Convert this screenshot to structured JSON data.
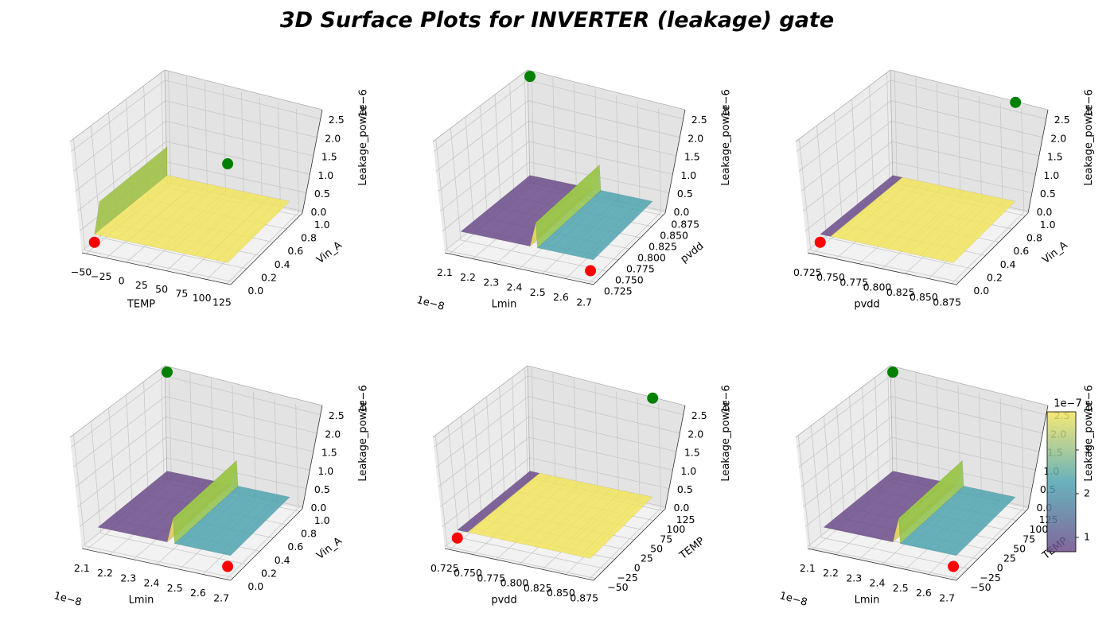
{
  "title": "3D Surface Plots for INVERTER (leakage) gate",
  "colors": {
    "low": "#6b4c8a",
    "mid": "#4fa4b0",
    "high": "#f3e55e",
    "max_marker": "#008000",
    "min_marker": "#ff0000"
  },
  "colorbar": {
    "exponent": "1e−7",
    "ticks": [
      "1",
      "2",
      "3"
    ],
    "colormap": "viridis"
  },
  "chart_data": [
    {
      "type": "surface3d",
      "xlabel": "TEMP",
      "ylabel": "Vin_A",
      "zlabel": "Leakage_power",
      "z_exponent": "1e−6",
      "x_ticks": [
        "−50",
        "−25",
        "0",
        "25",
        "50",
        "75",
        "100",
        "125"
      ],
      "y_ticks": [
        "0.0",
        "0.2",
        "0.4",
        "0.6",
        "0.8",
        "1.0"
      ],
      "z_ticks": [
        "0.0",
        "0.5",
        "1.0",
        "1.5",
        "2.0",
        "2.5"
      ],
      "xlim": [
        -50,
        125
      ],
      "ylim": [
        0,
        1
      ],
      "zlim": [
        0,
        2.5e-06
      ],
      "surface": "yellow plane at high Vin_A, step near Vin_A=0",
      "max_point": {
        "x": 125,
        "y": 0,
        "z": 2.4e-06
      },
      "min_point": {
        "x": -50,
        "y": 0,
        "z": 0.0
      }
    },
    {
      "type": "surface3d",
      "xlabel": "Lmin",
      "ylabel": "pvdd",
      "zlabel": "Leakage_power",
      "x_exponent": "1e−8",
      "z_exponent": "1e−6",
      "x_ticks": [
        "2.1",
        "2.2",
        "2.3",
        "2.4",
        "2.5",
        "2.6",
        "2.7"
      ],
      "y_ticks": [
        "0.725",
        "0.750",
        "0.775",
        "0.800",
        "0.825",
        "0.850",
        "0.875"
      ],
      "z_ticks": [
        "0.0",
        "0.5",
        "1.0",
        "1.5",
        "2.0",
        "2.5"
      ],
      "xlim": [
        2.1e-08,
        2.7e-08
      ],
      "ylim": [
        0.725,
        0.875
      ],
      "zlim": [
        0,
        2.5e-06
      ],
      "surface": "purple region at low Lmin, spike at Lmin~2.4e-8, teal region at high Lmin",
      "max_point": {
        "x": 2.1e-08,
        "y": 0.875,
        "z": 2.4e-06
      },
      "min_point": {
        "x": 2.7e-08,
        "y": 0.725,
        "z": 0.0
      }
    },
    {
      "type": "surface3d",
      "xlabel": "pvdd",
      "ylabel": "Vin_A",
      "zlabel": "Leakage_power",
      "z_exponent": "1e−6",
      "x_ticks": [
        "0.725",
        "0.750",
        "0.775",
        "0.800",
        "0.825",
        "0.850",
        "0.875"
      ],
      "y_ticks": [
        "0.0",
        "0.2",
        "0.4",
        "0.6",
        "0.8",
        "1.0"
      ],
      "z_ticks": [
        "0.0",
        "0.5",
        "1.0",
        "1.5",
        "2.0",
        "2.5"
      ],
      "xlim": [
        0.725,
        0.875
      ],
      "ylim": [
        0,
        1
      ],
      "zlim": [
        0,
        2.5e-06
      ],
      "surface": "purple strip at low Vin_A, yellow plane at high Vin_A",
      "max_point": {
        "x": 0.875,
        "y": 1,
        "z": 2.4e-06
      },
      "min_point": {
        "x": 0.725,
        "y": 0,
        "z": 0.0
      }
    },
    {
      "type": "surface3d",
      "xlabel": "Lmin",
      "ylabel": "Vin_A",
      "zlabel": "Leakage_power",
      "x_exponent": "1e−8",
      "z_exponent": "1e−6",
      "x_ticks": [
        "2.1",
        "2.2",
        "2.3",
        "2.4",
        "2.5",
        "2.6",
        "2.7"
      ],
      "y_ticks": [
        "0.0",
        "0.2",
        "0.4",
        "0.6",
        "0.8",
        "1.0"
      ],
      "z_ticks": [
        "0.0",
        "0.5",
        "1.0",
        "1.5",
        "2.0",
        "2.5"
      ],
      "xlim": [
        2.1e-08,
        2.7e-08
      ],
      "ylim": [
        0,
        1
      ],
      "zlim": [
        0,
        2.5e-06
      ],
      "surface": "purple region at low Lmin, spike at Lmin~2.4e-8, teal region at high Lmin",
      "max_point": {
        "x": 2.1e-08,
        "y": 1,
        "z": 2.4e-06
      },
      "min_point": {
        "x": 2.7e-08,
        "y": 0,
        "z": 0.0
      }
    },
    {
      "type": "surface3d",
      "xlabel": "pvdd",
      "ylabel": "TEMP",
      "zlabel": "Leakage_power",
      "z_exponent": "1e−6",
      "x_ticks": [
        "0.725",
        "0.750",
        "0.775",
        "0.800",
        "0.825",
        "0.850",
        "0.875"
      ],
      "y_ticks": [
        "−50",
        "−25",
        "0",
        "25",
        "50",
        "75",
        "100",
        "125"
      ],
      "z_ticks": [
        "0.0",
        "0.5",
        "1.0",
        "1.5",
        "2.0",
        "2.5"
      ],
      "xlim": [
        0.725,
        0.875
      ],
      "ylim": [
        -50,
        125
      ],
      "zlim": [
        0,
        2.5e-06
      ],
      "surface": "purple strip at low pvdd, yellow plane elsewhere",
      "max_point": {
        "x": 0.875,
        "y": 125,
        "z": 2.4e-06
      },
      "min_point": {
        "x": 0.725,
        "y": -50,
        "z": 0.0
      }
    },
    {
      "type": "surface3d",
      "xlabel": "Lmin",
      "ylabel": "TEMP",
      "zlabel": "Leakage_power",
      "x_exponent": "1e−8",
      "z_exponent": "1e−6",
      "x_ticks": [
        "2.1",
        "2.2",
        "2.3",
        "2.4",
        "2.5",
        "2.6",
        "2.7"
      ],
      "y_ticks": [
        "−50",
        "−25",
        "0",
        "25",
        "50",
        "75",
        "100",
        "125"
      ],
      "z_ticks": [
        "0.0",
        "0.5",
        "1.0",
        "1.5",
        "2.0",
        "2.5"
      ],
      "xlim": [
        2.1e-08,
        2.7e-08
      ],
      "ylim": [
        -50,
        125
      ],
      "zlim": [
        0,
        2.5e-06
      ],
      "surface": "purple region at low Lmin, spike at Lmin~2.4e-8, teal region at high Lmin",
      "max_point": {
        "x": 2.1e-08,
        "y": 125,
        "z": 2.4e-06
      },
      "min_point": {
        "x": 2.7e-08,
        "y": -50,
        "z": 0.0
      }
    }
  ]
}
